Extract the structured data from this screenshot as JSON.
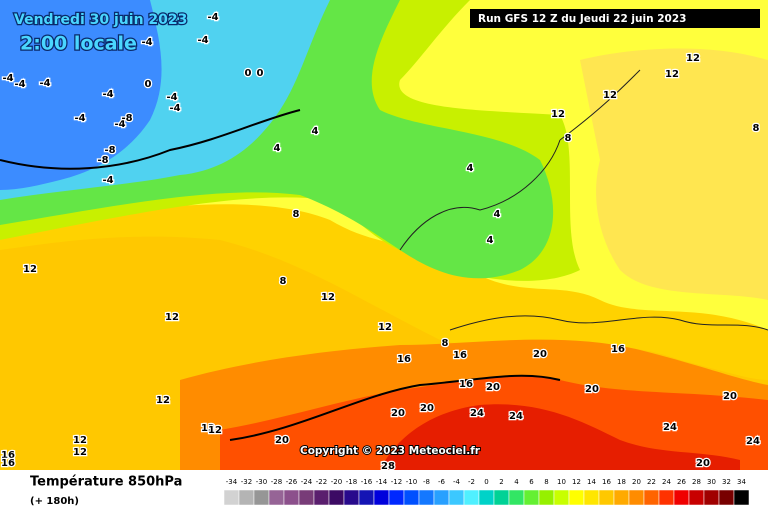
{
  "header": {
    "date": "Vendredi 30 juin 2023",
    "time": "2:00 locale",
    "run": "Run GFS 12 Z du Jeudi 22 juin 2023"
  },
  "copyright": "Copyright © 2023 Meteociel.fr",
  "legend": {
    "title": "Température 850hPa",
    "subtitle": "(+ 180h)",
    "scale": [
      -34,
      -32,
      -30,
      -28,
      -26,
      -24,
      -22,
      -20,
      -18,
      -16,
      -14,
      -12,
      -10,
      -8,
      -6,
      -4,
      -2,
      0,
      2,
      4,
      6,
      8,
      10,
      12,
      14,
      16,
      18,
      20,
      22,
      24,
      26,
      28,
      30,
      32,
      34
    ],
    "colors": [
      "#d2d2d2",
      "#b4b4b4",
      "#969696",
      "#966496",
      "#8c508c",
      "#783c78",
      "#5a1e6e",
      "#3c0a64",
      "#280a8c",
      "#1414b4",
      "#0000dc",
      "#0028ff",
      "#0050ff",
      "#1478ff",
      "#28a0ff",
      "#3cc8ff",
      "#50f0ff",
      "#00d2c8",
      "#00d296",
      "#32e664",
      "#64f032",
      "#96f000",
      "#c8ff00",
      "#ffff00",
      "#ffe600",
      "#ffc800",
      "#ffaa00",
      "#ff8c00",
      "#ff6400",
      "#ff3200",
      "#f00000",
      "#c80000",
      "#a00000",
      "#780000",
      "#000000"
    ]
  },
  "map": {
    "labels": [
      -4,
      -4,
      -4,
      -4,
      -4,
      -4,
      -4,
      -4,
      -4,
      -4,
      -4,
      -8,
      -8,
      0,
      0,
      0,
      -8,
      -4,
      4,
      4,
      4,
      4,
      4,
      8,
      8,
      12,
      12,
      12,
      12,
      12,
      12,
      12,
      12,
      8,
      8,
      8,
      16,
      16,
      16,
      20,
      16,
      20,
      20,
      20,
      12,
      20,
      20,
      24,
      24,
      24,
      24,
      12,
      12,
      12,
      12,
      20,
      28,
      20,
      16,
      16
    ]
  }
}
